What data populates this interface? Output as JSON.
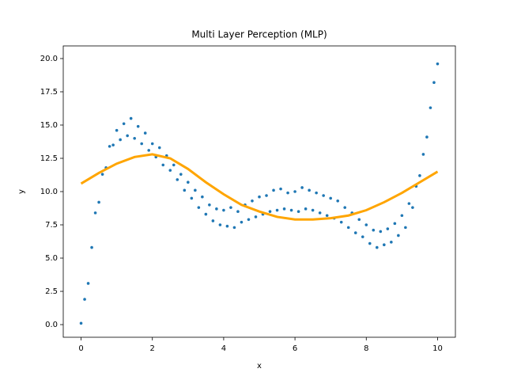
{
  "chart_data": {
    "type": "scatter",
    "title": "Multi Layer Perception (MLP)",
    "xlabel": "x",
    "ylabel": "y",
    "xlim": [
      -0.5,
      10.5
    ],
    "ylim": [
      -0.95,
      20.95
    ],
    "xticks": [
      0,
      2,
      4,
      6,
      8,
      10
    ],
    "yticks": [
      {
        "value": 0,
        "label": "0.0"
      },
      {
        "value": 2.5,
        "label": "2.5"
      },
      {
        "value": 5,
        "label": "5.0"
      },
      {
        "value": 7.5,
        "label": "7.5"
      },
      {
        "value": 10,
        "label": "10.0"
      },
      {
        "value": 12.5,
        "label": "12.5"
      },
      {
        "value": 15,
        "label": "15.0"
      },
      {
        "value": 17.5,
        "label": "17.5"
      },
      {
        "value": 20,
        "label": "20.0"
      }
    ],
    "series": [
      {
        "type": "scatter",
        "color": "#1f77b4",
        "x": [
          0.0,
          0.1,
          0.2,
          0.3,
          0.4,
          0.5,
          0.6,
          0.7,
          0.8,
          0.9,
          1.0,
          1.1,
          1.2,
          1.3,
          1.4,
          1.5,
          1.6,
          1.7,
          1.8,
          1.9,
          2.0,
          2.1,
          2.2,
          2.3,
          2.4,
          2.5,
          2.6,
          2.7,
          2.8,
          2.9,
          3.0,
          3.1,
          3.2,
          3.3,
          3.4,
          3.5,
          3.6,
          3.7,
          3.8,
          3.9,
          4.0,
          4.1,
          4.2,
          4.3,
          4.4,
          4.5,
          4.6,
          4.7,
          4.8,
          4.9,
          5.0,
          5.1,
          5.2,
          5.3,
          5.4,
          5.5,
          5.6,
          5.7,
          5.8,
          5.9,
          6.0,
          6.1,
          6.2,
          6.3,
          6.4,
          6.5,
          6.6,
          6.7,
          6.8,
          6.9,
          7.0,
          7.1,
          7.2,
          7.3,
          7.4,
          7.5,
          7.6,
          7.7,
          7.8,
          7.9,
          8.0,
          8.1,
          8.2,
          8.3,
          8.4,
          8.5,
          8.6,
          8.7,
          8.8,
          8.9,
          9.0,
          9.1,
          9.2,
          9.3,
          9.4,
          9.5,
          9.6,
          9.7,
          9.8,
          9.9,
          10.0
        ],
        "values": [
          0.1,
          1.9,
          3.1,
          5.8,
          8.4,
          9.2,
          11.3,
          11.8,
          13.4,
          13.5,
          14.6,
          13.9,
          15.1,
          14.2,
          15.5,
          14.0,
          14.9,
          13.6,
          14.4,
          13.1,
          13.6,
          12.6,
          13.3,
          12.0,
          12.7,
          11.6,
          12.0,
          10.9,
          11.3,
          10.1,
          10.7,
          9.5,
          10.1,
          8.8,
          9.6,
          8.3,
          9.0,
          7.8,
          8.7,
          7.5,
          8.6,
          7.4,
          8.8,
          7.3,
          8.5,
          7.7,
          9.0,
          7.9,
          9.3,
          8.1,
          9.6,
          8.3,
          9.7,
          8.5,
          10.1,
          8.6,
          10.2,
          8.7,
          9.9,
          8.6,
          10.0,
          8.5,
          10.3,
          8.7,
          10.1,
          8.6,
          9.9,
          8.4,
          9.7,
          8.2,
          9.5,
          8.0,
          9.3,
          7.7,
          8.8,
          7.3,
          8.4,
          6.9,
          7.9,
          6.6,
          7.5,
          6.1,
          7.1,
          5.8,
          7.0,
          6.0,
          7.2,
          6.2,
          7.6,
          6.7,
          8.2,
          7.3,
          9.1,
          8.8,
          10.4,
          11.2,
          12.8,
          14.1,
          16.3,
          18.2,
          19.6
        ]
      },
      {
        "type": "line",
        "color": "#ffa500",
        "x": [
          0,
          0.5,
          1,
          1.5,
          2,
          2.5,
          3,
          3.5,
          4,
          4.5,
          5,
          5.5,
          6,
          6.5,
          7,
          7.5,
          8,
          8.5,
          9,
          9.5,
          10
        ],
        "values": [
          10.6,
          11.4,
          12.1,
          12.6,
          12.8,
          12.5,
          11.7,
          10.7,
          9.8,
          9.0,
          8.5,
          8.1,
          7.9,
          7.9,
          8.0,
          8.2,
          8.6,
          9.2,
          9.9,
          10.7,
          11.5
        ]
      }
    ]
  }
}
